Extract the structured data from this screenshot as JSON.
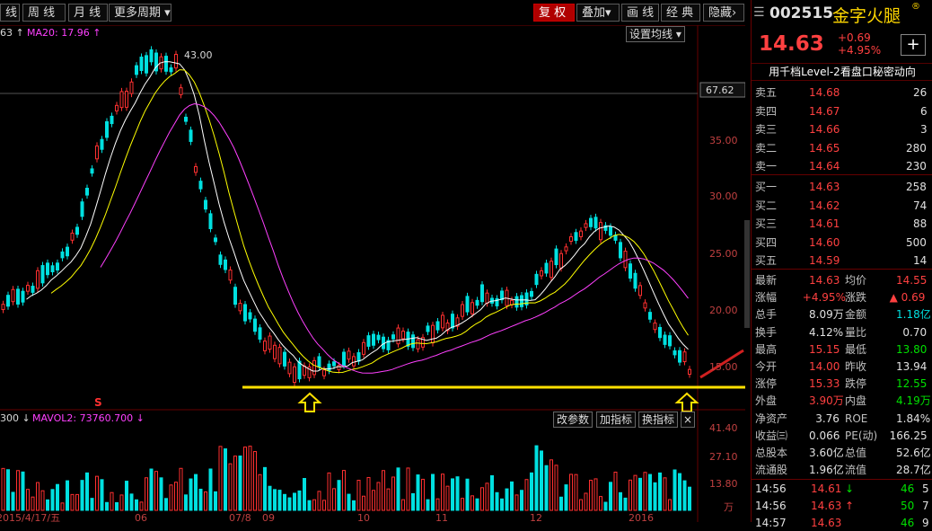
{
  "toolbar": {
    "btn_day": "线",
    "btn_week": "周 线",
    "btn_month": "月 线",
    "btn_more": "更多周期",
    "btn_fuquan": "复 权",
    "btn_overlay": "叠加",
    "btn_draw": "画 线",
    "btn_classic": "经 典",
    "btn_hide": "隐藏"
  },
  "chart": {
    "ma_legend_left": "63 ↑",
    "ma20_legend": "MA20: 17.96 ↑",
    "ma_settings_btn": "设置均线",
    "high_label": "43.00",
    "price_ticks": [
      "67.62",
      "35.00",
      "30.00",
      "25.00",
      "20.00",
      "15.00"
    ],
    "signal_label": "S",
    "vol_legend_left": "300 ↓",
    "mavol2_legend": "MAVOL2: 73760.700 ↓",
    "vol_btn_params": "改参数",
    "vol_btn_add": "加指标",
    "vol_btn_switch": "换指标",
    "vol_ticks": [
      "41.40",
      "27.10",
      "13.80",
      "万"
    ],
    "x_labels": [
      "2015/4/17/五",
      "06",
      "07/8",
      "09",
      "10",
      "11",
      "12",
      "2016"
    ]
  },
  "stock": {
    "code": "002515",
    "name": "金字火腿",
    "price": "14.63",
    "change": "+0.69",
    "change_pct": "+4.95%",
    "banner": "用千档Level-2看盘口秘密动向"
  },
  "orderbook": {
    "asks": [
      {
        "label": "卖五",
        "price": "14.68",
        "vol": "26"
      },
      {
        "label": "卖四",
        "price": "14.67",
        "vol": "6"
      },
      {
        "label": "卖三",
        "price": "14.66",
        "vol": "3"
      },
      {
        "label": "卖二",
        "price": "14.65",
        "vol": "280"
      },
      {
        "label": "卖一",
        "price": "14.64",
        "vol": "230"
      }
    ],
    "bids": [
      {
        "label": "买一",
        "price": "14.63",
        "vol": "258"
      },
      {
        "label": "买二",
        "price": "14.62",
        "vol": "74"
      },
      {
        "label": "买三",
        "price": "14.61",
        "vol": "88"
      },
      {
        "label": "买四",
        "price": "14.60",
        "vol": "500"
      },
      {
        "label": "买五",
        "price": "14.59",
        "vol": "14"
      }
    ]
  },
  "quote": {
    "latest_l": "最新",
    "latest": "14.63",
    "avg_l": "均价",
    "avg": "14.55",
    "pct_l": "涨幅",
    "pct": "+4.95%",
    "chg_l": "涨跌",
    "chg": "▲ 0.69",
    "vol_l": "总手",
    "vol": "8.09万",
    "amt_l": "金额",
    "amt": "1.18亿",
    "turn_l": "换手",
    "turn": "4.12%",
    "ratio_l": "量比",
    "ratio": "0.70",
    "high_l": "最高",
    "high": "15.15",
    "low_l": "最低",
    "low": "13.80",
    "open_l": "今开",
    "open": "14.00",
    "prev_l": "昨收",
    "prev": "13.94",
    "up_l": "涨停",
    "up": "15.33",
    "down_l": "跌停",
    "down": "12.55",
    "outer_l": "外盘",
    "outer": "3.90万",
    "inner_l": "内盘",
    "inner": "4.19万",
    "nav_l": "净资产",
    "nav": "3.76",
    "roe_l": "ROE",
    "roe": "1.84%",
    "eps_l": "收益㈢",
    "eps": "0.066",
    "pe_l": "PE(动)",
    "pe": "166.25",
    "shares_l": "总股本",
    "shares": "3.60亿",
    "mcap_l": "总值",
    "mcap": "52.6亿",
    "float_l": "流通股",
    "float": "1.96亿",
    "fmcap_l": "流值",
    "fmcap": "28.7亿"
  },
  "ticks": [
    {
      "time": "14:56",
      "price": "14.61",
      "dir": "↓",
      "vol": "46",
      "n": "5"
    },
    {
      "time": "14:56",
      "price": "14.63",
      "dir": "↑",
      "vol": "50",
      "n": "7"
    },
    {
      "time": "14:57",
      "price": "14.63",
      "dir": "",
      "vol": "46",
      "n": "9"
    }
  ],
  "colors": {
    "up": "#ff3030",
    "down": "#00e0e0",
    "ma5": "#ffffff",
    "ma10": "#ffff00",
    "ma20": "#ff40ff",
    "support": "#ffe000"
  }
}
